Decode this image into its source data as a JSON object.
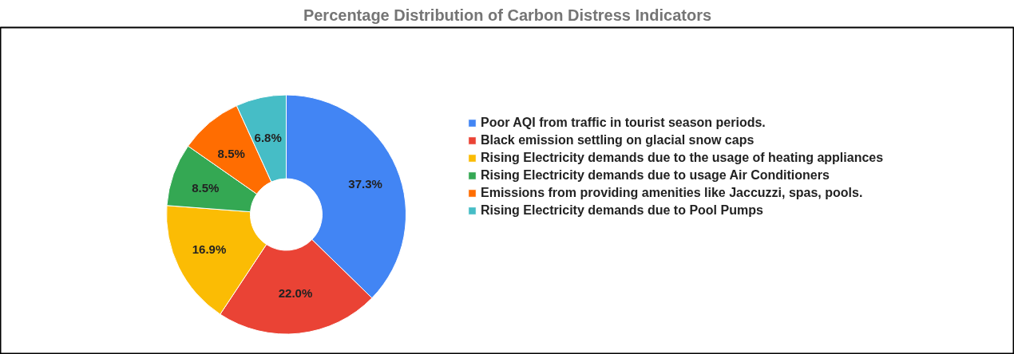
{
  "chart_data": {
    "type": "donut",
    "title": "Percentage Distribution of Carbon Distress Indicators",
    "categories": [
      "Poor AQI from traffic in tourist season periods.",
      "Black emission settling on glacial snow caps",
      "Rising Electricity demands due to the usage of heating appliances",
      "Rising Electricity demands due to usage Air Conditioners",
      "Emissions from providing amenities like Jaccuzzi, spas, pools.",
      "Rising Electricity demands due to Pool Pumps"
    ],
    "values": [
      37.3,
      22.0,
      16.9,
      8.5,
      8.5,
      6.8
    ],
    "colors": [
      "#4285f4",
      "#ea4335",
      "#fbbc04",
      "#34a853",
      "#ff6d01",
      "#46bdc6"
    ],
    "value_labels": [
      "37.3%",
      "22.0%",
      "16.9%",
      "8.5%",
      "8.5%",
      "6.8%"
    ],
    "legend": "right"
  }
}
